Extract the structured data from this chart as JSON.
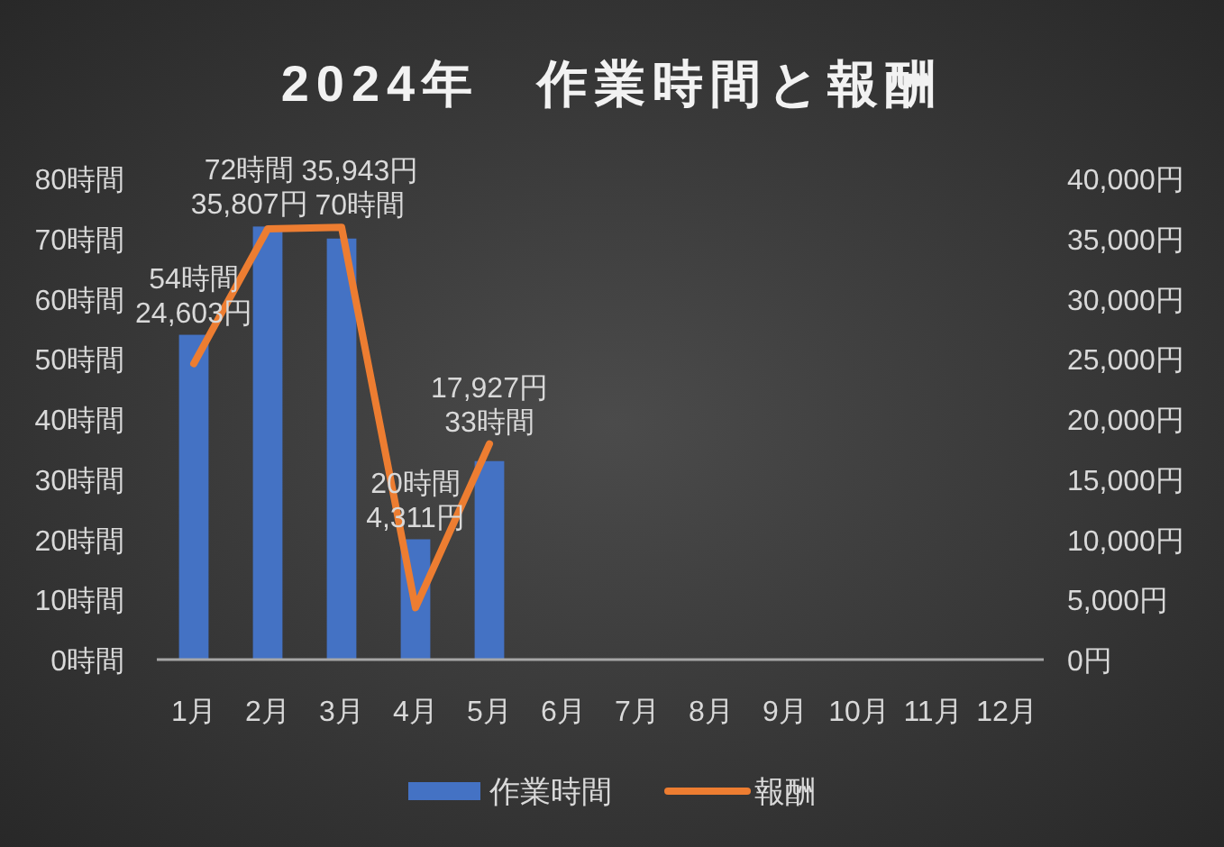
{
  "chart_data": {
    "type": "bar",
    "title": "2024年　作業時間と報酬",
    "categories": [
      "1月",
      "2月",
      "3月",
      "4月",
      "5月",
      "6月",
      "7月",
      "8月",
      "9月",
      "10月",
      "11月",
      "12月"
    ],
    "series": [
      {
        "name": "作業時間",
        "type": "bar",
        "color": "#4472c4",
        "values": [
          54,
          72,
          70,
          20,
          33,
          null,
          null,
          null,
          null,
          null,
          null,
          null
        ],
        "value_labels": [
          "54時間",
          "72時間",
          "70時間",
          "20時間",
          "33時間",
          null,
          null,
          null,
          null,
          null,
          null,
          null
        ]
      },
      {
        "name": "報酬",
        "type": "line",
        "axis": "y2",
        "color": "#ed7d31",
        "values": [
          24603,
          35807,
          35943,
          4311,
          17927,
          null,
          null,
          null,
          null,
          null,
          null,
          null
        ],
        "value_labels": [
          "24,603円",
          "35,807円",
          "35,943円",
          "4,311円",
          "17,927円",
          null,
          null,
          null,
          null,
          null,
          null,
          null
        ]
      }
    ],
    "ylim": [
      0,
      80
    ],
    "yticks": [
      {
        "value": 0,
        "label": "0時間"
      },
      {
        "value": 10,
        "label": "10時間"
      },
      {
        "value": 20,
        "label": "20時間"
      },
      {
        "value": 30,
        "label": "30時間"
      },
      {
        "value": 40,
        "label": "40時間"
      },
      {
        "value": 50,
        "label": "50時間"
      },
      {
        "value": 60,
        "label": "60時間"
      },
      {
        "value": 70,
        "label": "70時間"
      },
      {
        "value": 80,
        "label": "80時間"
      }
    ],
    "y2lim": [
      0,
      40000
    ],
    "y2ticks": [
      {
        "value": 0,
        "label": "0円"
      },
      {
        "value": 5000,
        "label": "5,000円"
      },
      {
        "value": 10000,
        "label": "10,000円"
      },
      {
        "value": 15000,
        "label": "15,000円"
      },
      {
        "value": 20000,
        "label": "20,000円"
      },
      {
        "value": 25000,
        "label": "25,000円"
      },
      {
        "value": 30000,
        "label": "30,000円"
      },
      {
        "value": 35000,
        "label": "35,000円"
      },
      {
        "value": 40000,
        "label": "40,000円"
      }
    ],
    "legend": "bottom"
  }
}
